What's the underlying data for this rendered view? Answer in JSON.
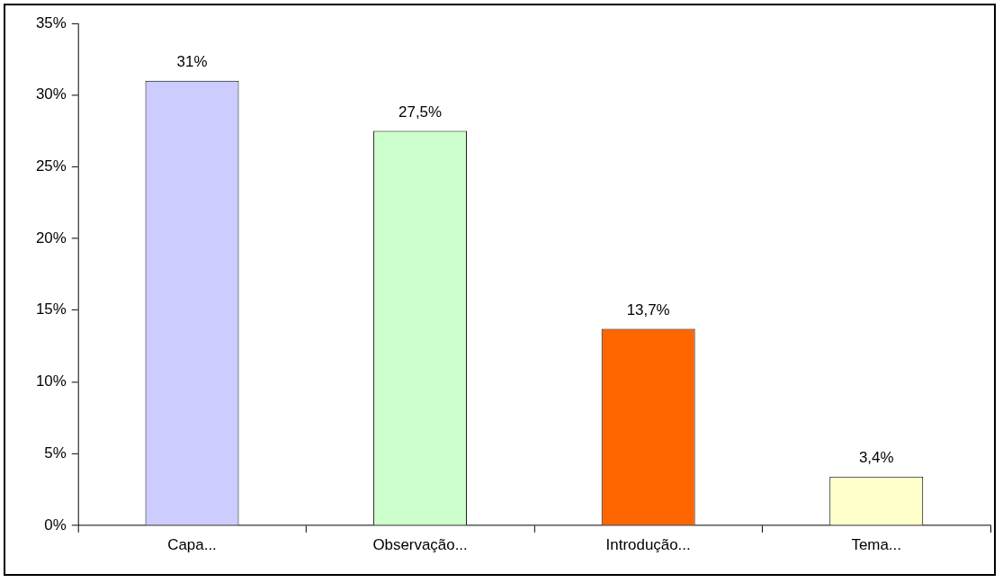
{
  "chart_data": {
    "type": "bar",
    "categories": [
      "Capa...",
      "Observação...",
      "Introdução...",
      "Tema..."
    ],
    "values": [
      31,
      27.5,
      13.7,
      3.4
    ],
    "colors": [
      "#ccccff",
      "#ccffcc",
      "#ff6600",
      "#ffffcc"
    ],
    "value_labels": [
      "31%",
      "27,5%",
      "13,7%",
      "3,4%"
    ],
    "ylim": [
      0,
      35
    ],
    "yticks": [
      {
        "value": 0,
        "label": "0%"
      },
      {
        "value": 5,
        "label": "5%"
      },
      {
        "value": 10,
        "label": "10%"
      },
      {
        "value": 15,
        "label": "15%"
      },
      {
        "value": 20,
        "label": "20%"
      },
      {
        "value": 25,
        "label": "25%"
      },
      {
        "value": 30,
        "label": "30%"
      },
      {
        "value": 35,
        "label": "35%"
      }
    ],
    "grid": false,
    "legend": false
  }
}
